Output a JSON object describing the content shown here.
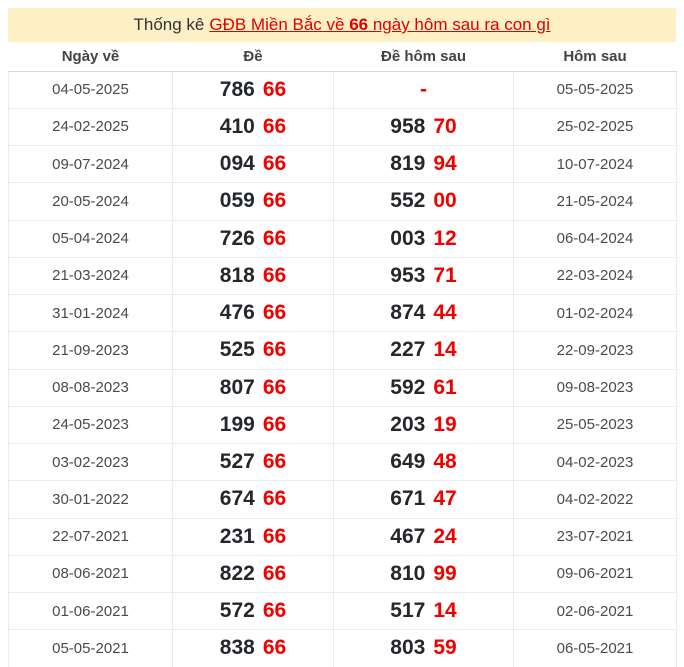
{
  "title": {
    "prefix": "Thống kê",
    "link_part1": "GĐB Miền Bắc về ",
    "link_bold": "66",
    "link_part2": " ngày hôm sau ra con gì"
  },
  "colors": {
    "banner_background": "#fdf0c5",
    "link_red": "#e00000",
    "number_red": "#f20000",
    "number_black": "#24272b"
  },
  "table": {
    "headers": [
      "Ngày về",
      "Đề",
      "Đề hôm sau",
      "Hôm sau"
    ],
    "rows": [
      {
        "date": "04-05-2025",
        "de_black": "786",
        "de_red": "66",
        "next_black": "",
        "next_red": "-",
        "next_date": "05-05-2025"
      },
      {
        "date": "24-02-2025",
        "de_black": "410",
        "de_red": "66",
        "next_black": "958",
        "next_red": "70",
        "next_date": "25-02-2025"
      },
      {
        "date": "09-07-2024",
        "de_black": "094",
        "de_red": "66",
        "next_black": "819",
        "next_red": "94",
        "next_date": "10-07-2024"
      },
      {
        "date": "20-05-2024",
        "de_black": "059",
        "de_red": "66",
        "next_black": "552",
        "next_red": "00",
        "next_date": "21-05-2024"
      },
      {
        "date": "05-04-2024",
        "de_black": "726",
        "de_red": "66",
        "next_black": "003",
        "next_red": "12",
        "next_date": "06-04-2024"
      },
      {
        "date": "21-03-2024",
        "de_black": "818",
        "de_red": "66",
        "next_black": "953",
        "next_red": "71",
        "next_date": "22-03-2024"
      },
      {
        "date": "31-01-2024",
        "de_black": "476",
        "de_red": "66",
        "next_black": "874",
        "next_red": "44",
        "next_date": "01-02-2024"
      },
      {
        "date": "21-09-2023",
        "de_black": "525",
        "de_red": "66",
        "next_black": "227",
        "next_red": "14",
        "next_date": "22-09-2023"
      },
      {
        "date": "08-08-2023",
        "de_black": "807",
        "de_red": "66",
        "next_black": "592",
        "next_red": "61",
        "next_date": "09-08-2023"
      },
      {
        "date": "24-05-2023",
        "de_black": "199",
        "de_red": "66",
        "next_black": "203",
        "next_red": "19",
        "next_date": "25-05-2023"
      },
      {
        "date": "03-02-2023",
        "de_black": "527",
        "de_red": "66",
        "next_black": "649",
        "next_red": "48",
        "next_date": "04-02-2023"
      },
      {
        "date": "30-01-2022",
        "de_black": "674",
        "de_red": "66",
        "next_black": "671",
        "next_red": "47",
        "next_date": "04-02-2022"
      },
      {
        "date": "22-07-2021",
        "de_black": "231",
        "de_red": "66",
        "next_black": "467",
        "next_red": "24",
        "next_date": "23-07-2021"
      },
      {
        "date": "08-06-2021",
        "de_black": "822",
        "de_red": "66",
        "next_black": "810",
        "next_red": "99",
        "next_date": "09-06-2021"
      },
      {
        "date": "01-06-2021",
        "de_black": "572",
        "de_red": "66",
        "next_black": "517",
        "next_red": "14",
        "next_date": "02-06-2021"
      },
      {
        "date": "05-05-2021",
        "de_black": "838",
        "de_red": "66",
        "next_black": "803",
        "next_red": "59",
        "next_date": "06-05-2021"
      }
    ]
  }
}
